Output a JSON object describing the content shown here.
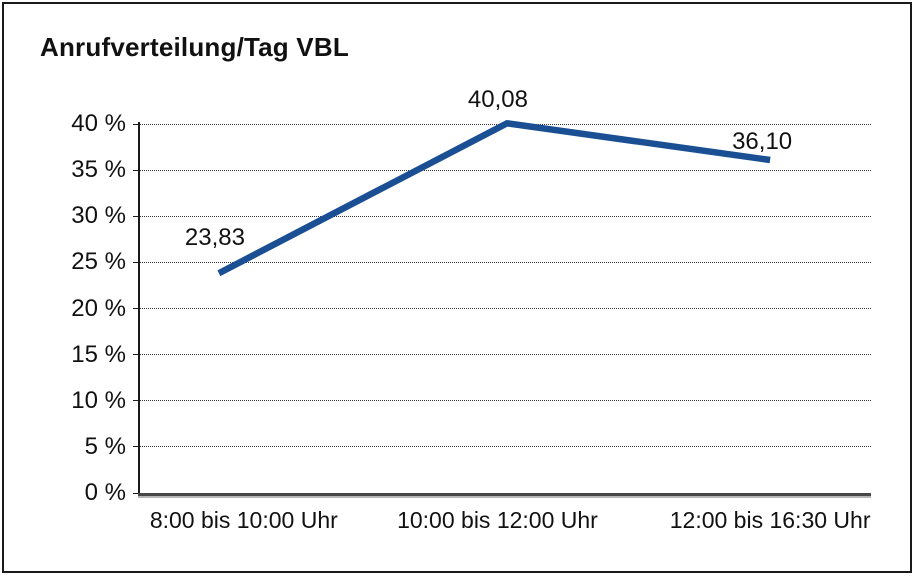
{
  "title": "Anrufverteilung/Tag VBL",
  "colors": {
    "line": "#1a4f94",
    "grid": "#333333",
    "axis": "#1a1a1a",
    "baseline": "#474747",
    "border": "#1a1a1a",
    "background": "#ffffff",
    "text": "#111111"
  },
  "chart_data": {
    "type": "line",
    "title": "Anrufverteilung/Tag VBL",
    "categories": [
      "8:00 bis 10:00 Uhr",
      "10:00 bis 12:00 Uhr",
      "12:00 bis 16:30 Uhr"
    ],
    "values": [
      23.83,
      40.08,
      36.1
    ],
    "point_labels": [
      "23,83",
      "40,08",
      "36,10"
    ],
    "xlabel": "",
    "ylabel": "",
    "ylim": [
      0,
      40
    ],
    "y_tick_values": [
      0,
      5,
      10,
      15,
      20,
      25,
      30,
      35,
      40
    ],
    "y_tick_labels": [
      "0 %",
      "5 %",
      "10 %",
      "15 %",
      "20 %",
      "25 %",
      "30 %",
      "35 %",
      "40 %"
    ],
    "grid": "horizontal-dotted",
    "legend": "none",
    "line_color": "#1a4f94"
  }
}
